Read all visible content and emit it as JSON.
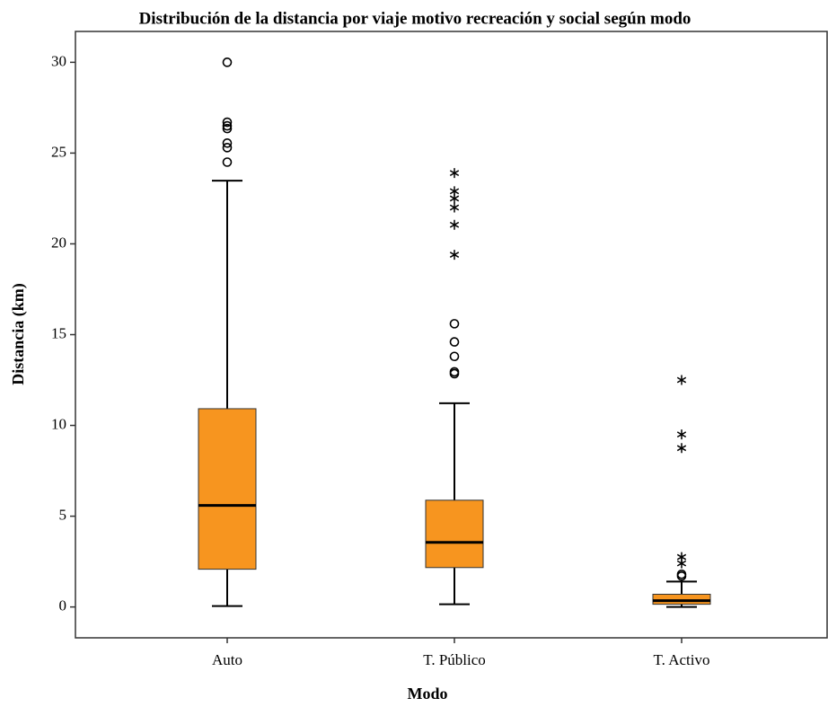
{
  "chart_data": {
    "type": "box",
    "title": "Distribución de la distancia por viaje motivo recreación y social según modo",
    "x_label": "Modo",
    "y_label": "Distancia (km)",
    "color": "#f7951f",
    "categories": [
      "Auto",
      "T. Público",
      "T. Activo"
    ],
    "boxes": [
      {
        "whisker_low": 0.05,
        "q1": 2.08,
        "median": 5.59,
        "q3": 10.92,
        "whisker_high": 23.48,
        "outliers": [
          30.0,
          26.7,
          26.5,
          26.35,
          25.55,
          25.3,
          24.5
        ],
        "extremes": []
      },
      {
        "whisker_low": 0.15,
        "q1": 2.17,
        "median": 3.56,
        "q3": 5.88,
        "whisker_high": 11.22,
        "outliers": [
          15.6,
          14.6,
          13.8,
          12.95,
          12.85
        ],
        "extremes": [
          23.9,
          22.9,
          22.5,
          22.0,
          21.05,
          19.4
        ]
      },
      {
        "whisker_low": 0.0,
        "q1": 0.15,
        "median": 0.35,
        "q3": 0.7,
        "whisker_high": 1.4,
        "outliers": [
          1.8,
          1.7
        ],
        "extremes": [
          2.75,
          2.4,
          12.5,
          9.5,
          8.75
        ]
      }
    ],
    "ylim": [
      -1.7,
      31.7
    ],
    "yticks": [
      0,
      5,
      10,
      15,
      20,
      25,
      30
    ]
  }
}
